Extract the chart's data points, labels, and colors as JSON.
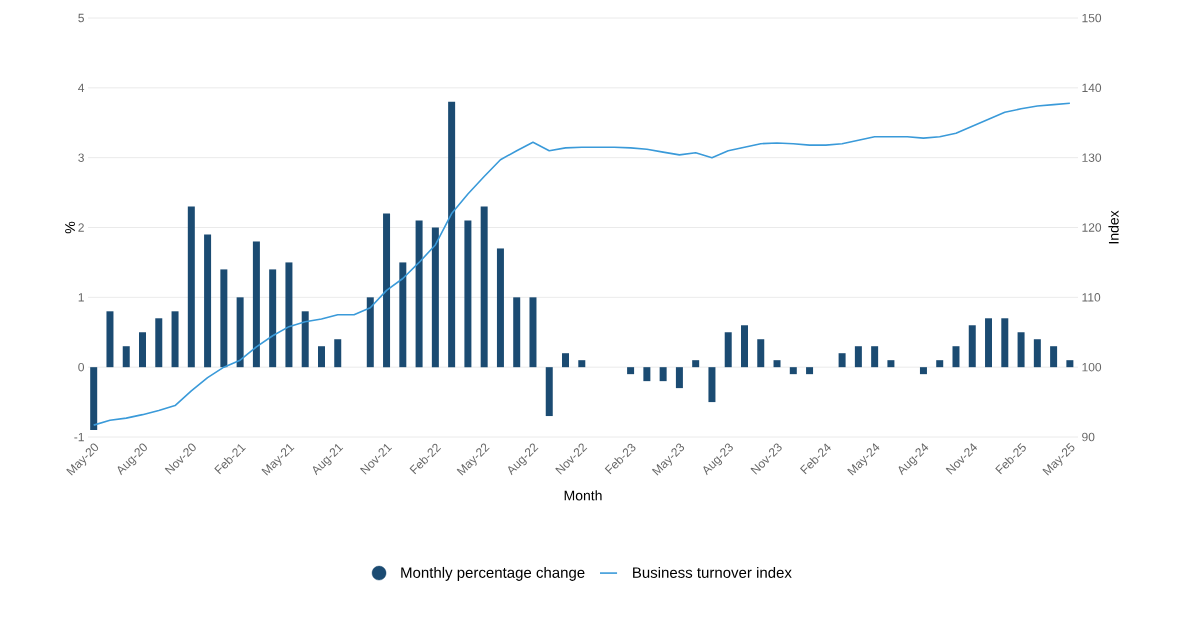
{
  "chart_data": {
    "type": "bar",
    "xlabel": "Month",
    "ylabel": "%",
    "y2label": "Index",
    "categories": [
      "May-20",
      null,
      null,
      "Aug-20",
      null,
      null,
      "Nov-20",
      null,
      null,
      "Feb-21",
      null,
      null,
      "May-21",
      null,
      null,
      "Aug-21",
      null,
      null,
      "Nov-21",
      null,
      null,
      "Feb-22",
      null,
      null,
      "May-22",
      null,
      null,
      "Aug-22",
      null,
      null,
      "Nov-22",
      null,
      null,
      "Feb-23",
      null,
      null,
      "May-23",
      null,
      null,
      "Aug-23",
      null,
      null,
      "Nov-23",
      null,
      null,
      "Feb-24",
      null,
      null,
      "May-24",
      null,
      null,
      "Aug-24",
      null,
      null,
      "Nov-24",
      null,
      null,
      "Feb-25",
      null,
      null,
      "May-25"
    ],
    "series": [
      {
        "name": "Monthly percentage change",
        "color": "#1b4b72",
        "values": [
          -0.9,
          0.8,
          0.3,
          0.5,
          0.7,
          0.8,
          2.3,
          1.9,
          1.4,
          1.0,
          1.8,
          1.4,
          1.5,
          0.8,
          0.3,
          0.4,
          0,
          1.0,
          2.2,
          1.5,
          2.1,
          2.0,
          3.8,
          2.1,
          2.3,
          1.7,
          1.0,
          1.0,
          -0.7,
          0.2,
          0.1,
          0,
          0,
          -0.1,
          -0.2,
          -0.2,
          -0.3,
          0.1,
          -0.5,
          0.5,
          0.6,
          0.4,
          0.1,
          -0.1,
          -0.1,
          0,
          0.2,
          0.3,
          0.3,
          0.1,
          0,
          -0.1,
          0.1,
          0.3,
          0.6,
          0.7,
          0.7,
          0.5,
          0.4,
          0.3,
          0.1
        ]
      },
      {
        "name": "Business turnover index",
        "type": "line",
        "axis": "y2",
        "color": "#3a9ad9",
        "values": [
          91.7,
          92.4,
          92.7,
          93.2,
          93.8,
          94.5,
          96.6,
          98.5,
          100.0,
          101.0,
          102.9,
          104.5,
          105.8,
          106.5,
          106.9,
          107.5,
          107.5,
          108.5,
          111.0,
          112.7,
          115.0,
          117.5,
          122.0,
          124.8,
          127.3,
          129.7,
          131.0,
          132.2,
          131.0,
          131.4,
          131.5,
          131.5,
          131.5,
          131.4,
          131.2,
          130.8,
          130.4,
          130.7,
          130.0,
          131.0,
          131.5,
          132.0,
          132.1,
          132.0,
          131.8,
          131.8,
          132.0,
          132.5,
          133.0,
          133.0,
          133.0,
          132.8,
          133.0,
          133.5,
          134.5,
          135.5,
          136.5,
          137.0,
          137.4,
          137.6,
          137.8
        ]
      }
    ],
    "ylim": [
      -1,
      5
    ],
    "yticks": [
      -1,
      0,
      1,
      2,
      3,
      4,
      5
    ],
    "y2lim": [
      90,
      150
    ],
    "y2ticks": [
      90,
      100,
      110,
      120,
      130,
      140,
      150
    ],
    "grid": "y",
    "legend": "bottom"
  }
}
